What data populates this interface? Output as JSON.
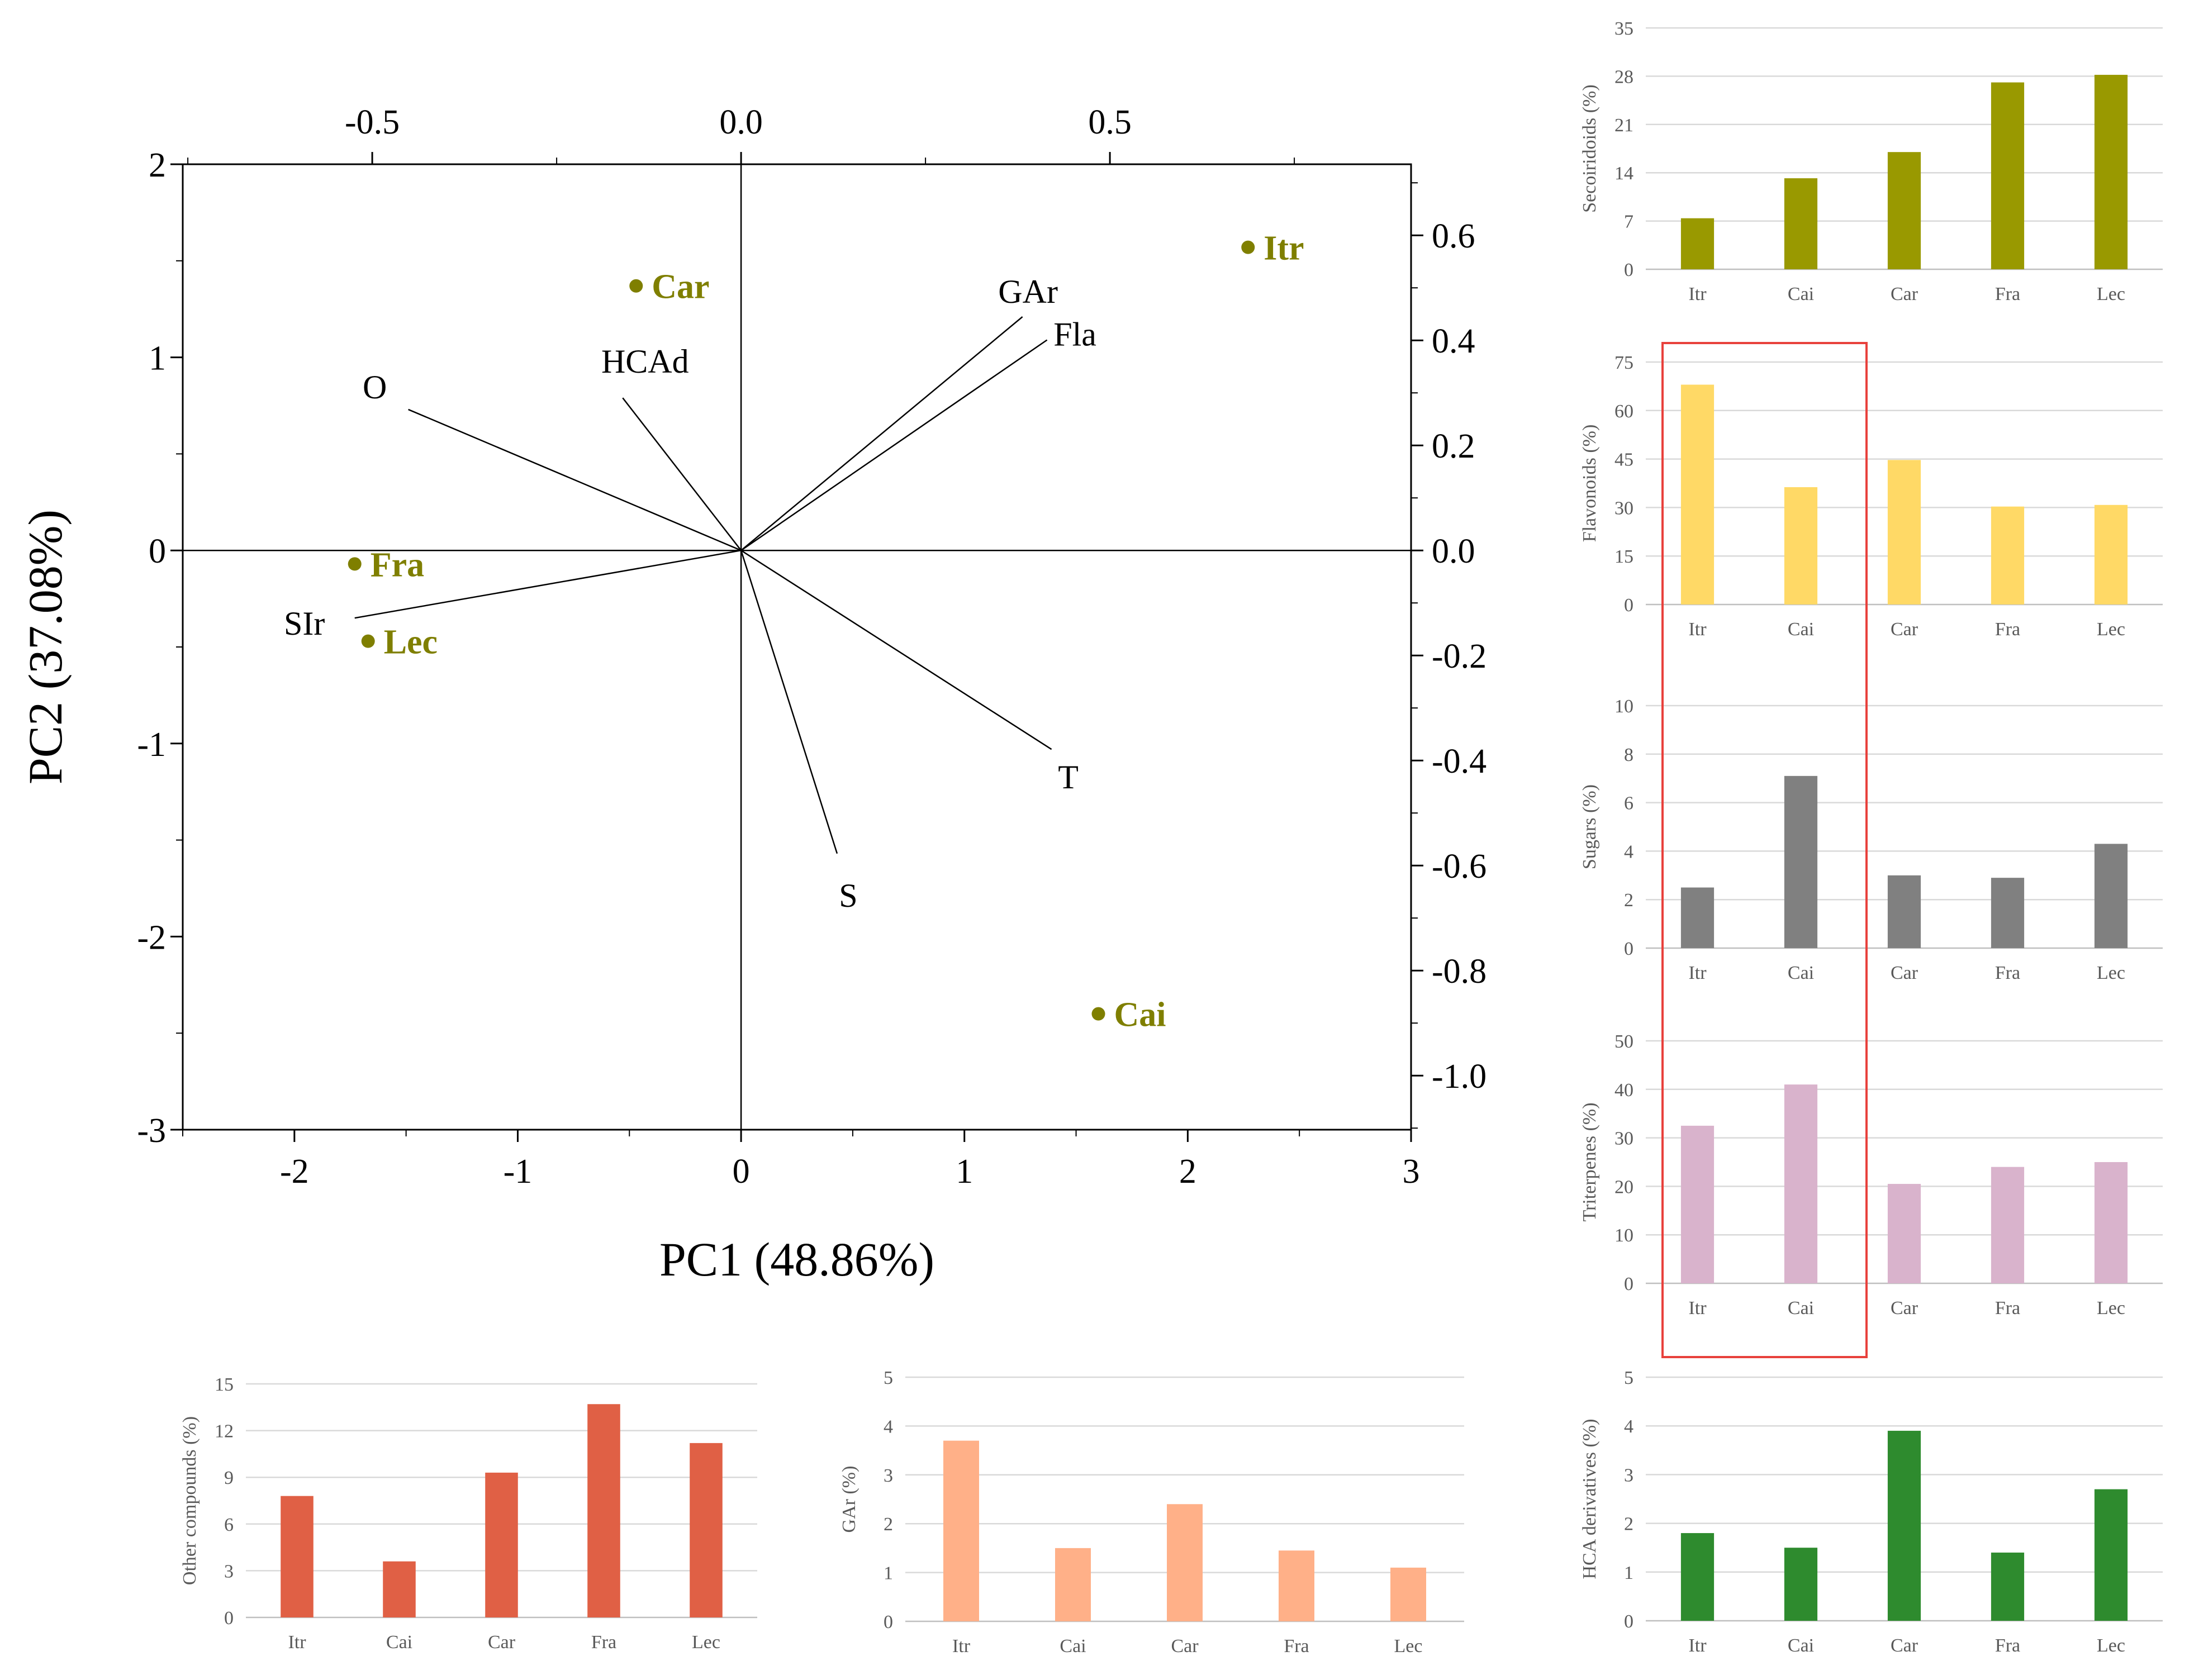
{
  "colors": {
    "score_points": "#7f7f00",
    "vector_line": "#000000",
    "highlight_box": "#e8413c",
    "secoiridoids": "#999900",
    "flavonoids": "#ffd966",
    "sugars": "#808080",
    "triterpenes": "#d9b3cc",
    "hca": "#2e8b2e",
    "other": "#e06045",
    "gar": "#ffb088"
  },
  "chart_data": [
    {
      "id": "biplot",
      "type": "scatter",
      "xlabel": "PC1 (48.86%)",
      "ylabel": "PC2 (37.08%)",
      "xlim": [
        -2.5,
        3
      ],
      "ylim": [
        -3,
        2
      ],
      "x_ticks": [
        "-2",
        "-1",
        "0",
        "1",
        "2",
        "3"
      ],
      "y_ticks": [
        "2",
        "1",
        "0",
        "-1",
        "-2",
        "-3"
      ],
      "top_ticks": [
        "-0.5",
        "0.0",
        "0.5"
      ],
      "right_ticks": [
        "0.6",
        "0.4",
        "0.2",
        "0.0",
        "-0.2",
        "-0.4",
        "-0.6",
        "-0.8",
        "-1.0"
      ],
      "scores": [
        {
          "label": "Itr",
          "x": 2.27,
          "y": 1.57
        },
        {
          "label": "Car",
          "x": -0.47,
          "y": 1.37
        },
        {
          "label": "Fra",
          "x": -1.73,
          "y": -0.07
        },
        {
          "label": "Lec",
          "x": -1.67,
          "y": -0.47
        },
        {
          "label": "Cai",
          "x": 1.6,
          "y": -2.4
        }
      ],
      "loadings": [
        {
          "label": "GAr",
          "x": 1.26,
          "y": 1.21
        },
        {
          "label": "Fla",
          "x": 1.37,
          "y": 1.09
        },
        {
          "label": "HCAd",
          "x": -0.53,
          "y": 0.79
        },
        {
          "label": "O",
          "x": -1.49,
          "y": 0.73
        },
        {
          "label": "SIr",
          "x": -1.73,
          "y": -0.35
        },
        {
          "label": "T",
          "x": 1.39,
          "y": -1.03
        },
        {
          "label": "S",
          "x": 0.43,
          "y": -1.57
        }
      ]
    },
    {
      "id": "secoiridoids",
      "type": "bar",
      "color": "#999900",
      "ylabel": "Secoiridoids (%)",
      "categories": [
        "Itr",
        "Cai",
        "Car",
        "Fra",
        "Lec"
      ],
      "values": [
        7.4,
        13.2,
        17,
        27.1,
        28.2
      ],
      "ylim": [
        0,
        35
      ],
      "yticks": [
        "0",
        "7",
        "14",
        "21",
        "28",
        "35"
      ]
    },
    {
      "id": "flavonoids",
      "type": "bar",
      "color": "#ffd966",
      "ylabel": "Flavonoids (%)",
      "categories": [
        "Itr",
        "Cai",
        "Car",
        "Fra",
        "Lec"
      ],
      "values": [
        68,
        36.3,
        44.7,
        30.3,
        30.8
      ],
      "ylim": [
        0,
        75
      ],
      "yticks": [
        "0",
        "15",
        "30",
        "45",
        "60",
        "75"
      ]
    },
    {
      "id": "sugars",
      "type": "bar",
      "color": "#808080",
      "ylabel": "Sugars (%)",
      "categories": [
        "Itr",
        "Cai",
        "Car",
        "Fra",
        "Lec"
      ],
      "values": [
        2.5,
        7.1,
        3,
        2.9,
        4.3
      ],
      "ylim": [
        0,
        10
      ],
      "yticks": [
        "0",
        "2",
        "4",
        "6",
        "8",
        "10"
      ]
    },
    {
      "id": "triterpenes",
      "type": "bar",
      "color": "#d9b3cc",
      "ylabel": "Triterpenes (%)",
      "categories": [
        "Itr",
        "Cai",
        "Car",
        "Fra",
        "Lec"
      ],
      "values": [
        32.5,
        41,
        20.5,
        24,
        25
      ],
      "ylim": [
        0,
        50
      ],
      "yticks": [
        "0",
        "10",
        "20",
        "30",
        "40",
        "50"
      ]
    },
    {
      "id": "hca",
      "type": "bar",
      "color": "#2e8b2e",
      "ylabel": "HCA derivatives (%)",
      "categories": [
        "Itr",
        "Cai",
        "Car",
        "Fra",
        "Lec"
      ],
      "values": [
        1.8,
        1.5,
        3.9,
        1.4,
        2.7
      ],
      "ylim": [
        0,
        5
      ],
      "yticks": [
        "0",
        "1",
        "2",
        "3",
        "4",
        "5"
      ]
    },
    {
      "id": "other",
      "type": "bar",
      "color": "#e06045",
      "ylabel": "Other compounds (%)",
      "categories": [
        "Itr",
        "Cai",
        "Car",
        "Fra",
        "Lec"
      ],
      "values": [
        7.8,
        3.6,
        9.3,
        13.7,
        11.2
      ],
      "ylim": [
        0,
        15
      ],
      "yticks": [
        "0",
        "3",
        "6",
        "9",
        "12",
        "15"
      ]
    },
    {
      "id": "gar",
      "type": "bar",
      "color": "#ffb088",
      "ylabel": "GAr (%)",
      "categories": [
        "Itr",
        "Cai",
        "Car",
        "Fra",
        "Lec"
      ],
      "values": [
        3.7,
        1.5,
        2.4,
        1.45,
        1.1
      ],
      "ylim": [
        0,
        5
      ],
      "yticks": [
        "0",
        "1",
        "2",
        "3",
        "4",
        "5"
      ]
    }
  ]
}
